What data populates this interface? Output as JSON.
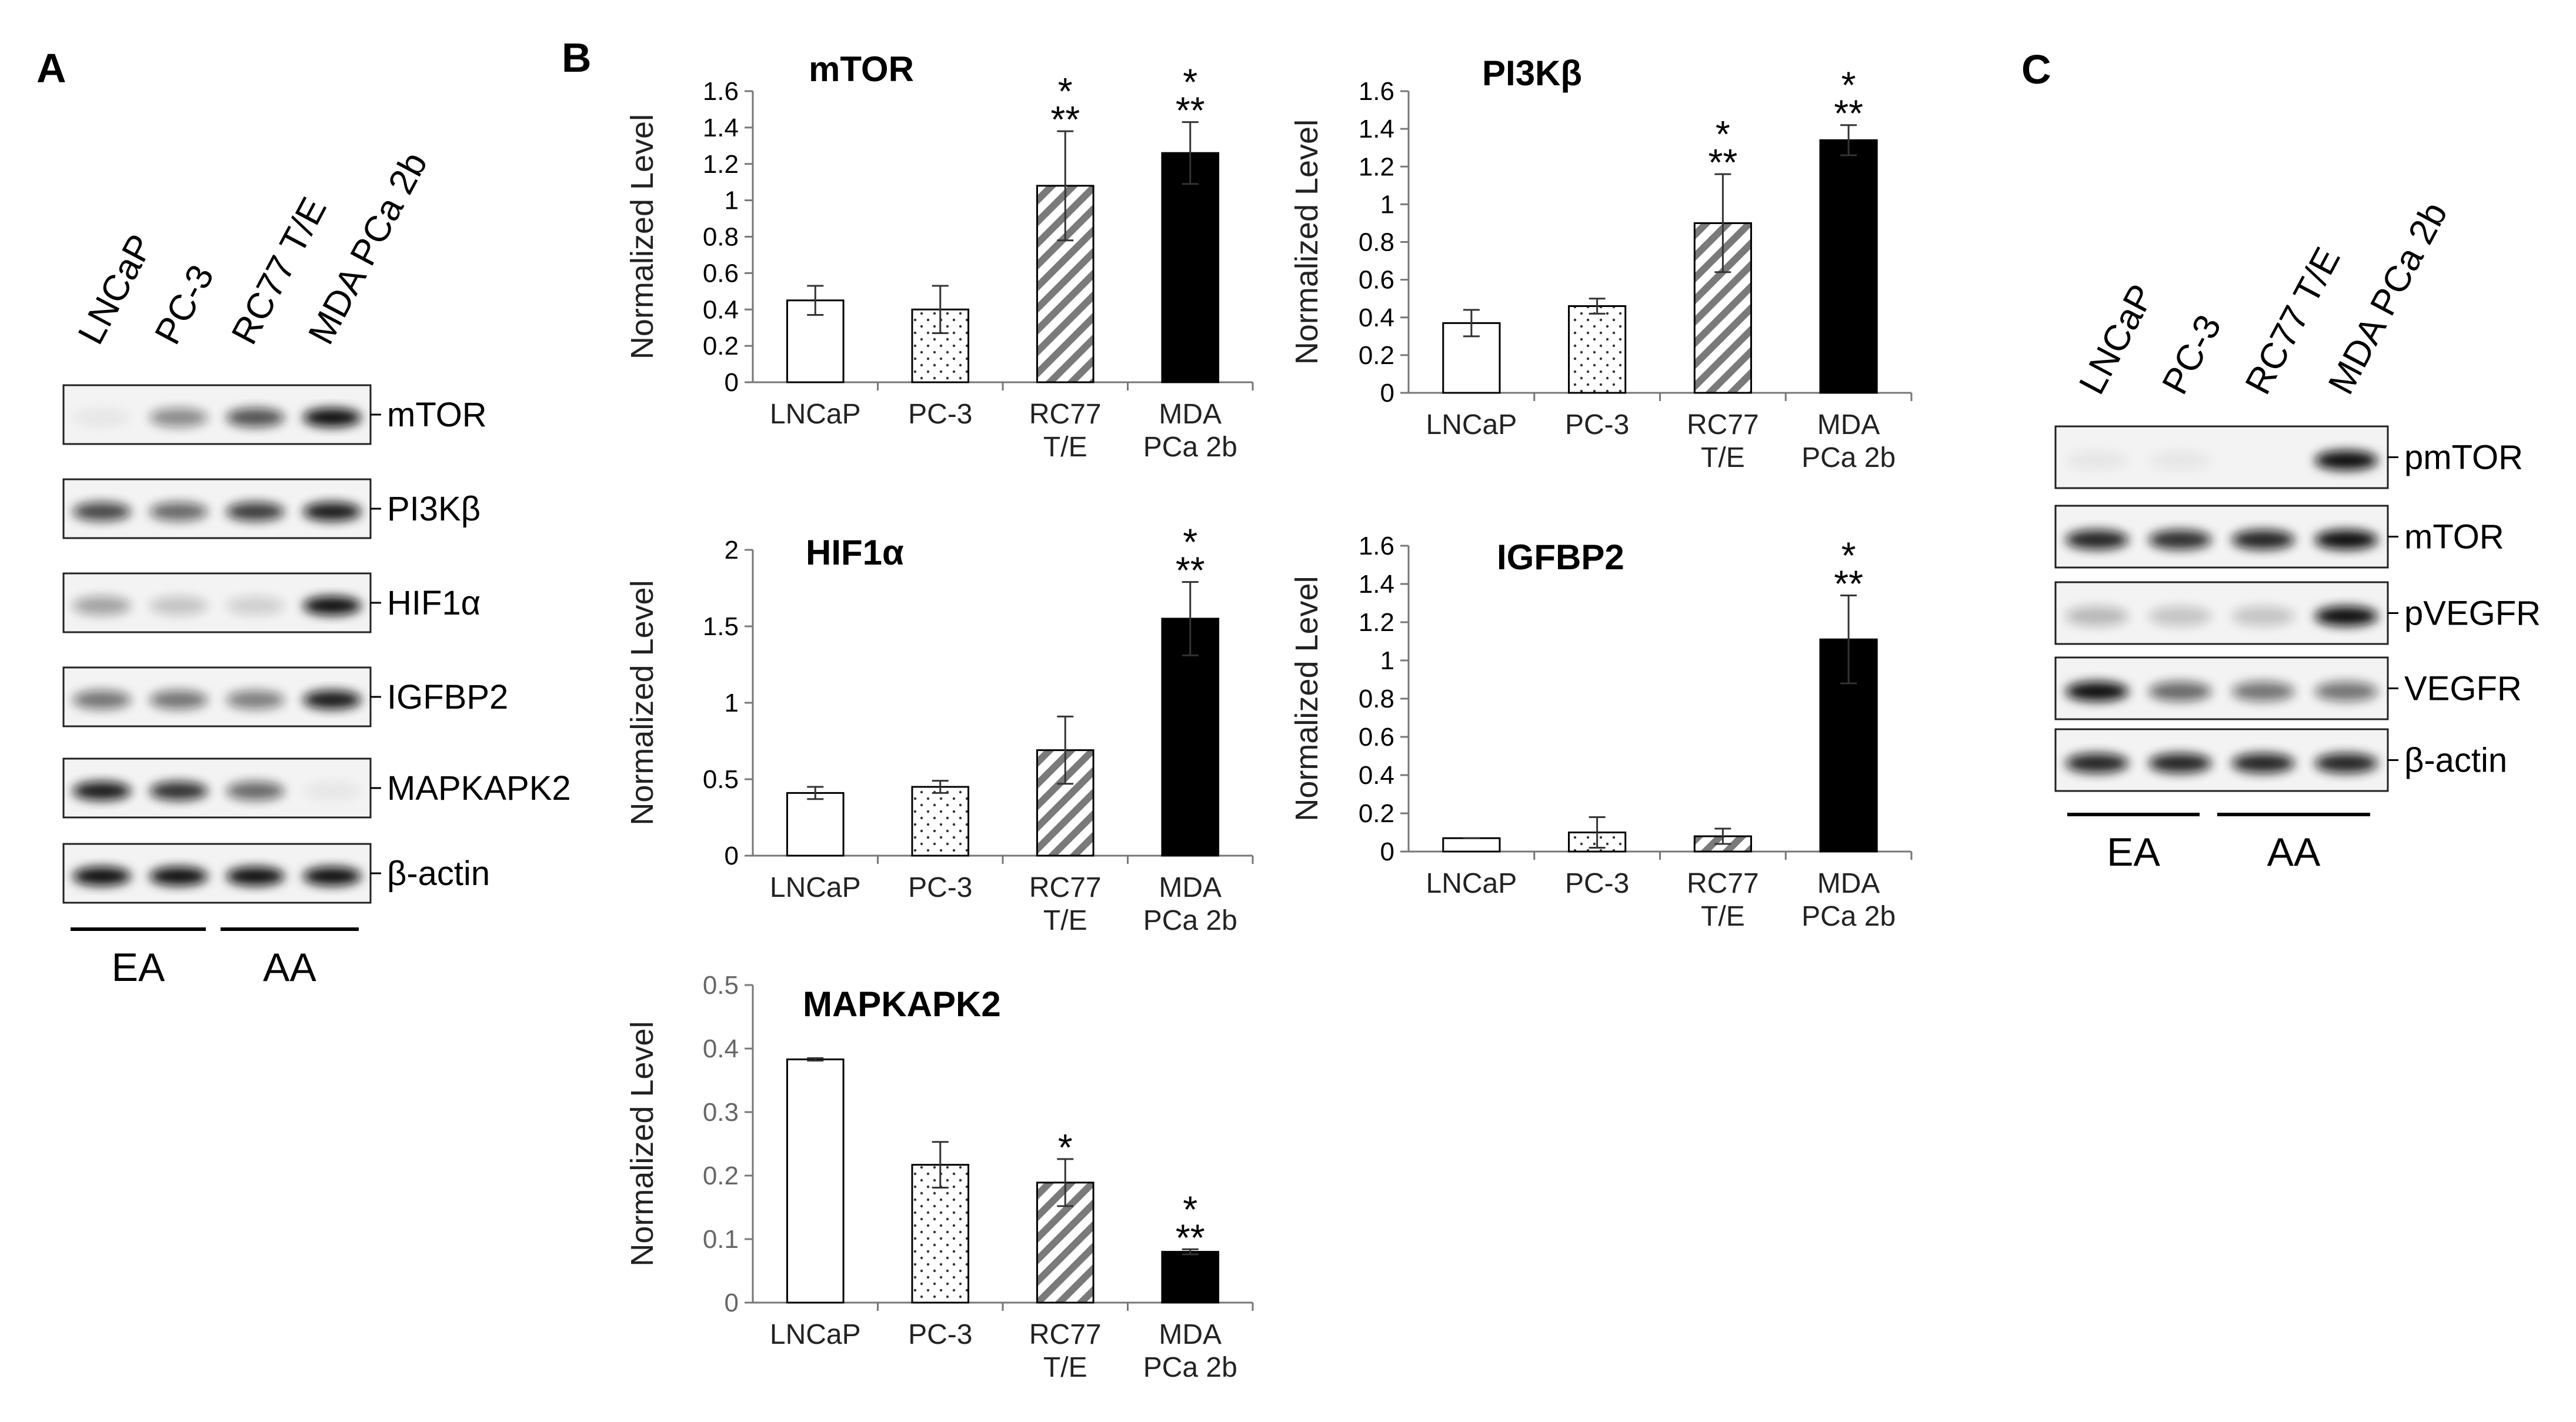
{
  "panels": {
    "A": "A",
    "B": "B",
    "C": "C"
  },
  "panelA": {
    "lanes": [
      "LNCaP",
      "PC-3",
      "RC77 T/E",
      "MDA PCa 2b"
    ],
    "proteins": [
      "mTOR",
      "PI3Kβ",
      "HIF1α",
      "IGFBP2",
      "MAPKAPK2",
      "β-actin"
    ],
    "groups": [
      "EA",
      "AA"
    ]
  },
  "panelC": {
    "lanes": [
      "LNCaP",
      "PC-3",
      "RC77 T/E",
      "MDA PCa 2b"
    ],
    "proteins": [
      "pmTOR",
      "mTOR",
      "pVEGFR",
      "VEGFR",
      "β-actin"
    ],
    "groups": [
      "EA",
      "AA"
    ]
  },
  "chart_data": [
    {
      "type": "bar",
      "title": "mTOR",
      "ylabel": "Normalized Level",
      "categories": [
        "LNCaP",
        "PC-3",
        "RC77\nT/E",
        "MDA\nPCa 2b"
      ],
      "values": [
        0.45,
        0.4,
        1.08,
        1.26
      ],
      "errors": [
        0.08,
        0.13,
        0.3,
        0.17
      ],
      "significance": [
        "",
        "",
        "*\n**",
        "*\n**"
      ],
      "ylim": [
        0,
        1.6
      ],
      "yticks": [
        "0",
        "0.2",
        "0.4",
        "0.6",
        "0.8",
        "1",
        "1.2",
        "1.4",
        "1.6"
      ]
    },
    {
      "type": "bar",
      "title": "PI3Kβ",
      "ylabel": "Normalized Level",
      "categories": [
        "LNCaP",
        "PC-3",
        "RC77\nT/E",
        "MDA\nPCa 2b"
      ],
      "values": [
        0.37,
        0.46,
        0.9,
        1.34
      ],
      "errors": [
        0.07,
        0.04,
        0.26,
        0.08
      ],
      "significance": [
        "",
        "",
        "*\n**",
        "*\n**"
      ],
      "ylim": [
        0,
        1.6
      ],
      "yticks": [
        "0",
        "0.2",
        "0.4",
        "0.6",
        "0.8",
        "1",
        "1.2",
        "1.4",
        "1.6"
      ]
    },
    {
      "type": "bar",
      "title": "HIF1α",
      "ylabel": "Normalized Level",
      "categories": [
        "LNCaP",
        "PC-3",
        "RC77\nT/E",
        "MDA\nPCa 2b"
      ],
      "values": [
        0.41,
        0.45,
        0.69,
        1.55
      ],
      "errors": [
        0.04,
        0.04,
        0.22,
        0.24
      ],
      "significance": [
        "",
        "",
        "",
        "*\n**"
      ],
      "ylim": [
        0,
        2
      ],
      "yticks": [
        "0",
        "0.5",
        "1",
        "1.5",
        "2"
      ]
    },
    {
      "type": "bar",
      "title": "IGFBP2",
      "ylabel": "Normalized Level",
      "categories": [
        "LNCaP",
        "PC-3",
        "RC77\nT/E",
        "MDA\nPCa 2b"
      ],
      "values": [
        0.07,
        0.1,
        0.08,
        1.11
      ],
      "errors": [
        0.0,
        0.08,
        0.04,
        0.23
      ],
      "significance": [
        "",
        "",
        "",
        "*\n**"
      ],
      "ylim": [
        0,
        1.6
      ],
      "yticks": [
        "0",
        "0.2",
        "0.4",
        "0.6",
        "0.8",
        "1",
        "1.2",
        "1.4",
        "1.6"
      ]
    },
    {
      "type": "bar",
      "title": "MAPKAPK2",
      "ylabel": "Normalized Level",
      "categories": [
        "LNCaP",
        "PC-3",
        "RC77\nT/E",
        "MDA\nPCa 2b"
      ],
      "values": [
        0.383,
        0.217,
        0.189,
        0.08
      ],
      "errors": [
        0.002,
        0.036,
        0.037,
        0.004
      ],
      "significance": [
        "",
        "",
        "*",
        "*\n**"
      ],
      "ylim": [
        0,
        0.5
      ],
      "yticks": [
        "0",
        "0.1",
        "0.2",
        "0.3",
        "0.4",
        "0.5"
      ]
    }
  ],
  "styles": {
    "fills": [
      "#ffffff",
      "dots",
      "hatch",
      "#000000"
    ],
    "blot_bg": "#f3f3f3",
    "band_color": "#111111"
  }
}
